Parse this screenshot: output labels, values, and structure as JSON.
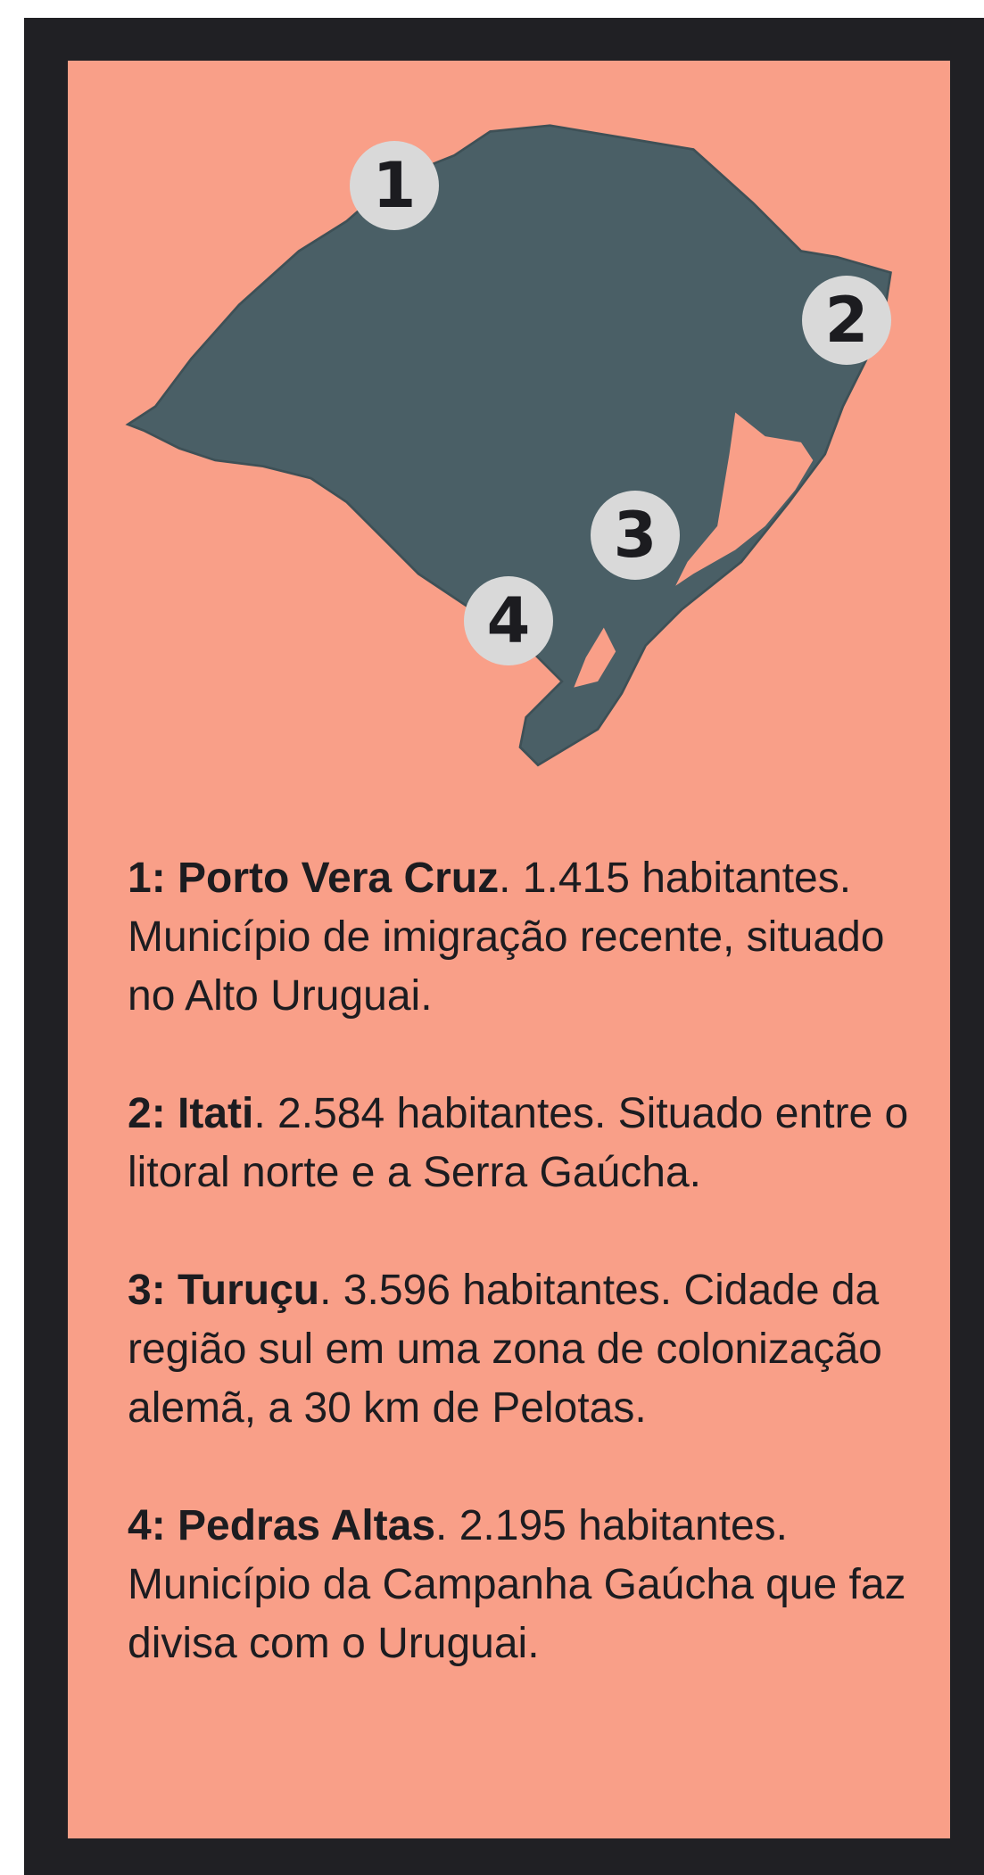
{
  "map": {
    "markers": [
      "1",
      "2",
      "3",
      "4"
    ]
  },
  "items": [
    {
      "name": "1: Porto Vera Cruz",
      "text": ". 1.415 habitantes. Município de imigração recente, situado no Alto Uruguai."
    },
    {
      "name": "2: Itati",
      "text": ". 2.584 habitantes. Situado entre o litoral norte e a Serra Gaúcha."
    },
    {
      "name": "3: Turuçu",
      "text": ". 3.596 habitantes. Cidade da região sul em uma zona de colonização alemã, a 30 km de Pelotas."
    },
    {
      "name": "4: Pedras Altas",
      "text": ". 2.195 habitantes. Município da Campanha Gaúcha que faz divisa com o Uruguai."
    }
  ]
}
